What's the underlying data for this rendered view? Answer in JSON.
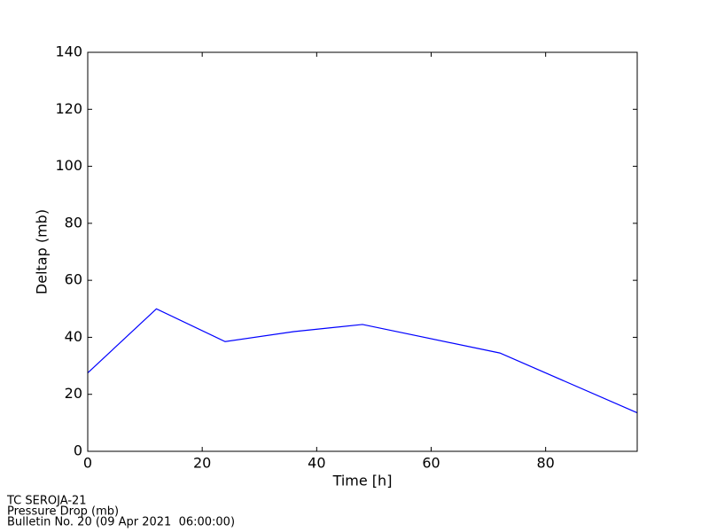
{
  "chart_data": {
    "type": "line",
    "x": [
      0,
      12,
      24,
      36,
      48,
      72,
      96
    ],
    "series": [
      {
        "name": "Deltap",
        "color": "#0000ff",
        "values": [
          27.5,
          50,
          38.5,
          42,
          44.5,
          34.5,
          13.5
        ]
      }
    ],
    "xlim": [
      0,
      96
    ],
    "xticks": [
      0,
      20,
      40,
      60,
      80
    ],
    "ylim": [
      0,
      140
    ],
    "yticks": [
      0,
      20,
      40,
      60,
      80,
      100,
      120,
      140
    ],
    "xlabel": "Time [h]",
    "ylabel": "Deltap (mb)",
    "footer": [
      "TC SEROJA-21",
      "Pressure Drop (mb)",
      "Bulletin No. 20 (09 Apr 2021  06:00:00)"
    ]
  }
}
